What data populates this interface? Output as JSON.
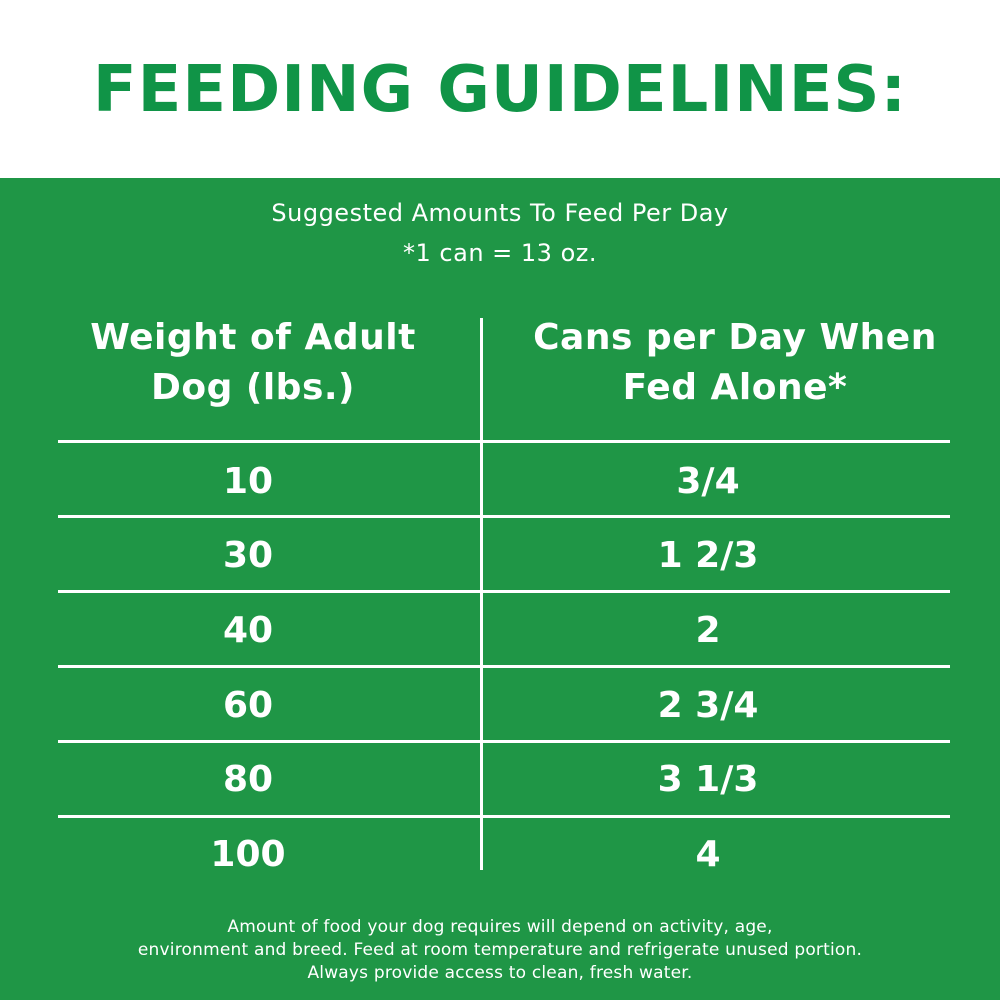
{
  "header": {
    "title": "FEEDING GUIDELINES:"
  },
  "panel": {
    "subtitle": "Suggested Amounts To Feed Per Day",
    "can_note": "*1 can = 13 oz.",
    "columns": {
      "left": [
        "Weight of Adult",
        "Dog (lbs.)"
      ],
      "right": [
        "Cans per Day When",
        "Fed Alone*"
      ]
    },
    "rows": [
      {
        "weight": "10",
        "cans": "3/4"
      },
      {
        "weight": "30",
        "cans": "1 2/3"
      },
      {
        "weight": "40",
        "cans": "2"
      },
      {
        "weight": "60",
        "cans": "2 3/4"
      },
      {
        "weight": "80",
        "cans": "3 1/3"
      },
      {
        "weight": "100",
        "cans": "4"
      }
    ],
    "footnote": [
      "Amount of food your dog requires will depend on activity, age,",
      "environment and breed. Feed at room temperature and refrigerate unused portion.",
      "Always provide access to clean, fresh water."
    ]
  },
  "colors": {
    "brand_green": "#109447",
    "panel_green": "#1f9646",
    "text_on_panel": "#ffffff"
  }
}
